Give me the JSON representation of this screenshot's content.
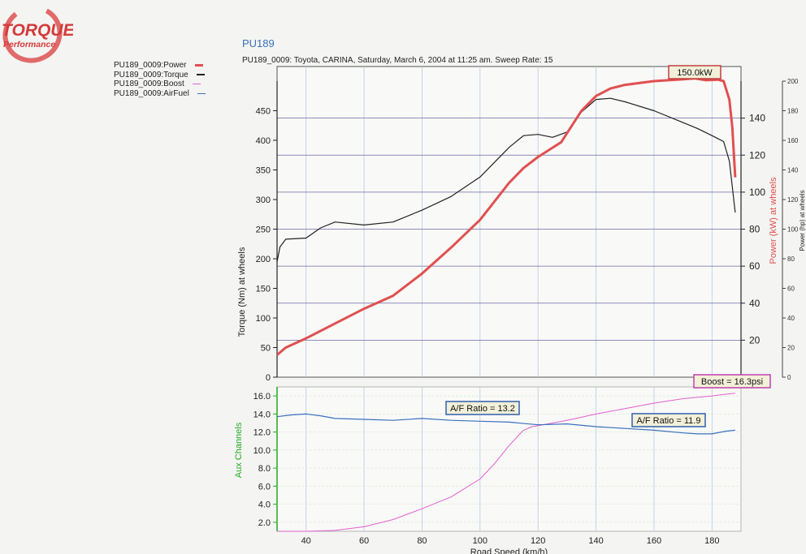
{
  "logo": {
    "line1": "TORQUE",
    "line2": "Performance"
  },
  "header": {
    "title": "PU189",
    "subtitle": "PU189_0009: Toyota, CARINA, Saturday, March 6, 2004  at  11:25 am.  Sweep Rate: 15"
  },
  "legend": [
    {
      "label": "PU189_0009:Power",
      "color": "#e05050"
    },
    {
      "label": "PU189_0009:Torque",
      "color": "#222222"
    },
    {
      "label": "PU189_0009:Boost",
      "color": "#e060d0"
    },
    {
      "label": "PU189_0009:AirFuel",
      "color": "#3a70c0"
    }
  ],
  "colors": {
    "power": "#e05050",
    "torque": "#222222",
    "boost": "#e060d0",
    "airfuel": "#3a70c0",
    "aux_axis": "#22aa22",
    "grid_main": "#6a6aa8",
    "grid_light": "#b8c8e8"
  },
  "chart_data": [
    {
      "type": "line",
      "panel": "main",
      "xlabel": "Road Speed (km/h)",
      "xlim": [
        30,
        190
      ],
      "x_ticks": [
        40,
        60,
        80,
        100,
        120,
        140,
        160,
        180
      ],
      "left_axis": {
        "label": "Torque (Nm) at wheels",
        "ylim": [
          0,
          500
        ],
        "ticks": [
          0,
          50,
          100,
          150,
          200,
          250,
          300,
          350,
          400,
          450
        ]
      },
      "right_axis": {
        "label": "Power (kW) at wheels",
        "ylim": [
          0,
          160
        ],
        "ticks": [
          20,
          40,
          60,
          80,
          100,
          120,
          140
        ]
      },
      "right_axis2": {
        "label": "Power (hp) at wheels",
        "ylim": [
          0,
          200
        ],
        "ticks": [
          0,
          20,
          40,
          60,
          80,
          100,
          120,
          140,
          160,
          180,
          200
        ]
      },
      "series": [
        {
          "name": "PU189_0009:Power",
          "axis": "right",
          "x": [
            30,
            33,
            40,
            50,
            60,
            70,
            80,
            90,
            100,
            110,
            115,
            120,
            125,
            128,
            135,
            140,
            145,
            150,
            160,
            170,
            174,
            178,
            182,
            184,
            186,
            187,
            188
          ],
          "y": [
            12,
            16,
            21,
            29,
            37,
            44,
            56,
            70,
            85,
            105,
            113,
            119,
            124,
            127,
            144,
            152,
            156,
            158,
            160,
            161,
            161.5,
            160.5,
            160.8,
            160,
            150,
            135,
            108
          ]
        },
        {
          "name": "PU189_0009:Torque",
          "axis": "left",
          "x": [
            30,
            31,
            33,
            40,
            45,
            50,
            60,
            70,
            80,
            90,
            100,
            110,
            115,
            120,
            125,
            130,
            135,
            140,
            145,
            150,
            160,
            170,
            175,
            180,
            184,
            186,
            188
          ],
          "y": [
            195,
            220,
            233,
            235,
            252,
            262,
            257,
            262,
            282,
            305,
            338,
            388,
            408,
            410,
            405,
            414,
            448,
            469,
            471,
            465,
            450,
            430,
            420,
            408,
            398,
            365,
            278
          ]
        }
      ],
      "annotations": [
        {
          "text": "150.0kW"
        }
      ]
    },
    {
      "type": "line",
      "panel": "aux",
      "xlabel": "Road Speed (km/h)",
      "xlim": [
        30,
        190
      ],
      "y_axis": {
        "label": "Aux Channels",
        "ylim": [
          1,
          17
        ],
        "ticks": [
          2.0,
          4.0,
          6.0,
          8.0,
          10.0,
          12.0,
          14.0,
          16.0
        ]
      },
      "series": [
        {
          "name": "PU189_0009:AirFuel",
          "x": [
            30,
            35,
            40,
            45,
            50,
            60,
            70,
            80,
            90,
            100,
            110,
            120,
            130,
            140,
            150,
            160,
            170,
            175,
            180,
            185,
            188
          ],
          "y": [
            13.7,
            13.9,
            14.0,
            13.8,
            13.5,
            13.4,
            13.3,
            13.5,
            13.3,
            13.2,
            13.1,
            12.8,
            12.9,
            12.6,
            12.4,
            12.2,
            11.9,
            11.8,
            11.8,
            12.1,
            12.2
          ]
        },
        {
          "name": "PU189_0009:Boost",
          "x": [
            30,
            40,
            50,
            60,
            70,
            80,
            90,
            100,
            105,
            110,
            115,
            118,
            120,
            130,
            140,
            150,
            160,
            170,
            180,
            185,
            188
          ],
          "y": [
            1.0,
            1.0,
            1.1,
            1.5,
            2.3,
            3.5,
            4.8,
            6.8,
            8.5,
            10.5,
            12.2,
            12.6,
            12.7,
            13.3,
            14.0,
            14.6,
            15.2,
            15.7,
            16.0,
            16.2,
            16.3
          ]
        }
      ],
      "annotations": [
        {
          "text": "A/F Ratio = 13.2"
        },
        {
          "text": "A/F Ratio = 11.9"
        },
        {
          "text": "Boost = 16.3psi"
        }
      ]
    }
  ]
}
